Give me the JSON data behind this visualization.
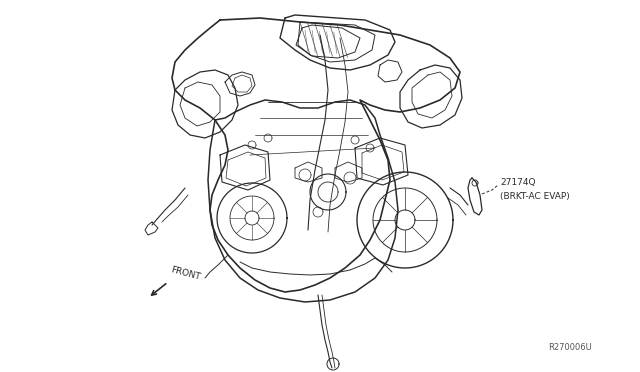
{
  "bg_color": "#ffffff",
  "fig_width": 6.4,
  "fig_height": 3.72,
  "dpi": 100,
  "part_number": "27174Q",
  "part_name": "(BRKT-AC EVAP)",
  "ref_code": "R270006U",
  "front_label": "FRONT",
  "line_color": "#2a2a2a",
  "text_color": "#2a2a2a",
  "font_size_label": 6.5,
  "font_size_ref": 6.0,
  "font_size_front": 6.5
}
